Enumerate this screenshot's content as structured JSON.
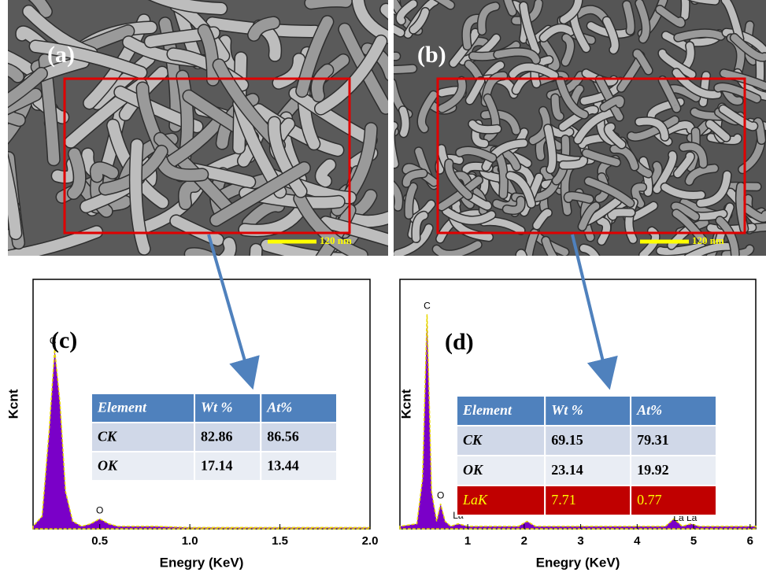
{
  "panels": [
    {
      "label": "(a)",
      "scale_bar": "120 nm"
    },
    {
      "label": "(b)",
      "scale_bar": "120 nm"
    }
  ],
  "chart_data": [
    {
      "type": "area",
      "label": "(c)",
      "x_label": "Enegry (KeV)",
      "y_label": "Kcnt",
      "xlim": [
        0.13,
        2.0
      ],
      "ylim": [
        0,
        100
      ],
      "xticks": [
        0.5,
        {
          "value": 1,
          "label": "1.0"
        },
        1.5,
        {
          "value": 2,
          "label": "2.0"
        }
      ],
      "x": [
        0.13,
        0.18,
        0.22,
        0.25,
        0.28,
        0.31,
        0.35,
        0.4,
        0.45,
        0.5,
        0.55,
        0.6,
        0.8,
        1.0,
        1.5,
        2.0
      ],
      "series": [
        {
          "color": "#7a00c8",
          "values": [
            1,
            5,
            40,
            72,
            50,
            15,
            3,
            1,
            2,
            4,
            2,
            1,
            1,
            0.5,
            0.5,
            0.5
          ]
        }
      ],
      "peak_labels": [
        {
          "text": "C",
          "x": 0.24
        },
        {
          "text": "O",
          "x": 0.5
        }
      ],
      "table": {
        "header": [
          "Element",
          "Wt %",
          "At%"
        ],
        "rows": [
          [
            "CK",
            "82.86",
            "86.56"
          ],
          [
            "OK",
            "17.14",
            "13.44"
          ]
        ]
      }
    },
    {
      "type": "area",
      "label": "(d)",
      "x_label": "Enegry (KeV)",
      "y_label": "Kcnt",
      "xlim": [
        -0.2,
        6.1
      ],
      "ylim": [
        0,
        100
      ],
      "xticks": [
        1,
        2,
        3,
        4,
        5,
        6
      ],
      "x": [
        -0.2,
        0.1,
        0.2,
        0.28,
        0.36,
        0.45,
        0.52,
        0.6,
        0.7,
        0.83,
        1.0,
        1.9,
        2.05,
        2.2,
        4.5,
        4.65,
        4.8,
        4.95,
        5.1,
        6.1
      ],
      "series": [
        {
          "color": "#7a00c8",
          "values": [
            1,
            2,
            20,
            86,
            15,
            3,
            10,
            3,
            1,
            2,
            1,
            1,
            3,
            1,
            1,
            4,
            1,
            2,
            1,
            1
          ]
        }
      ],
      "peak_labels": [
        {
          "text": "C",
          "x": 0.28
        },
        {
          "text": "O",
          "x": 0.52
        },
        {
          "text": "La",
          "x": 0.83
        },
        {
          "text": "La La",
          "x": 4.85
        }
      ],
      "table": {
        "header": [
          "Element",
          "Wt %",
          "At%"
        ],
        "rows": [
          [
            "CK",
            "69.15",
            "79.31"
          ],
          [
            "OK",
            "23.14",
            "19.92"
          ],
          [
            "LaK",
            "7.71",
            "0.77"
          ]
        ]
      }
    }
  ]
}
